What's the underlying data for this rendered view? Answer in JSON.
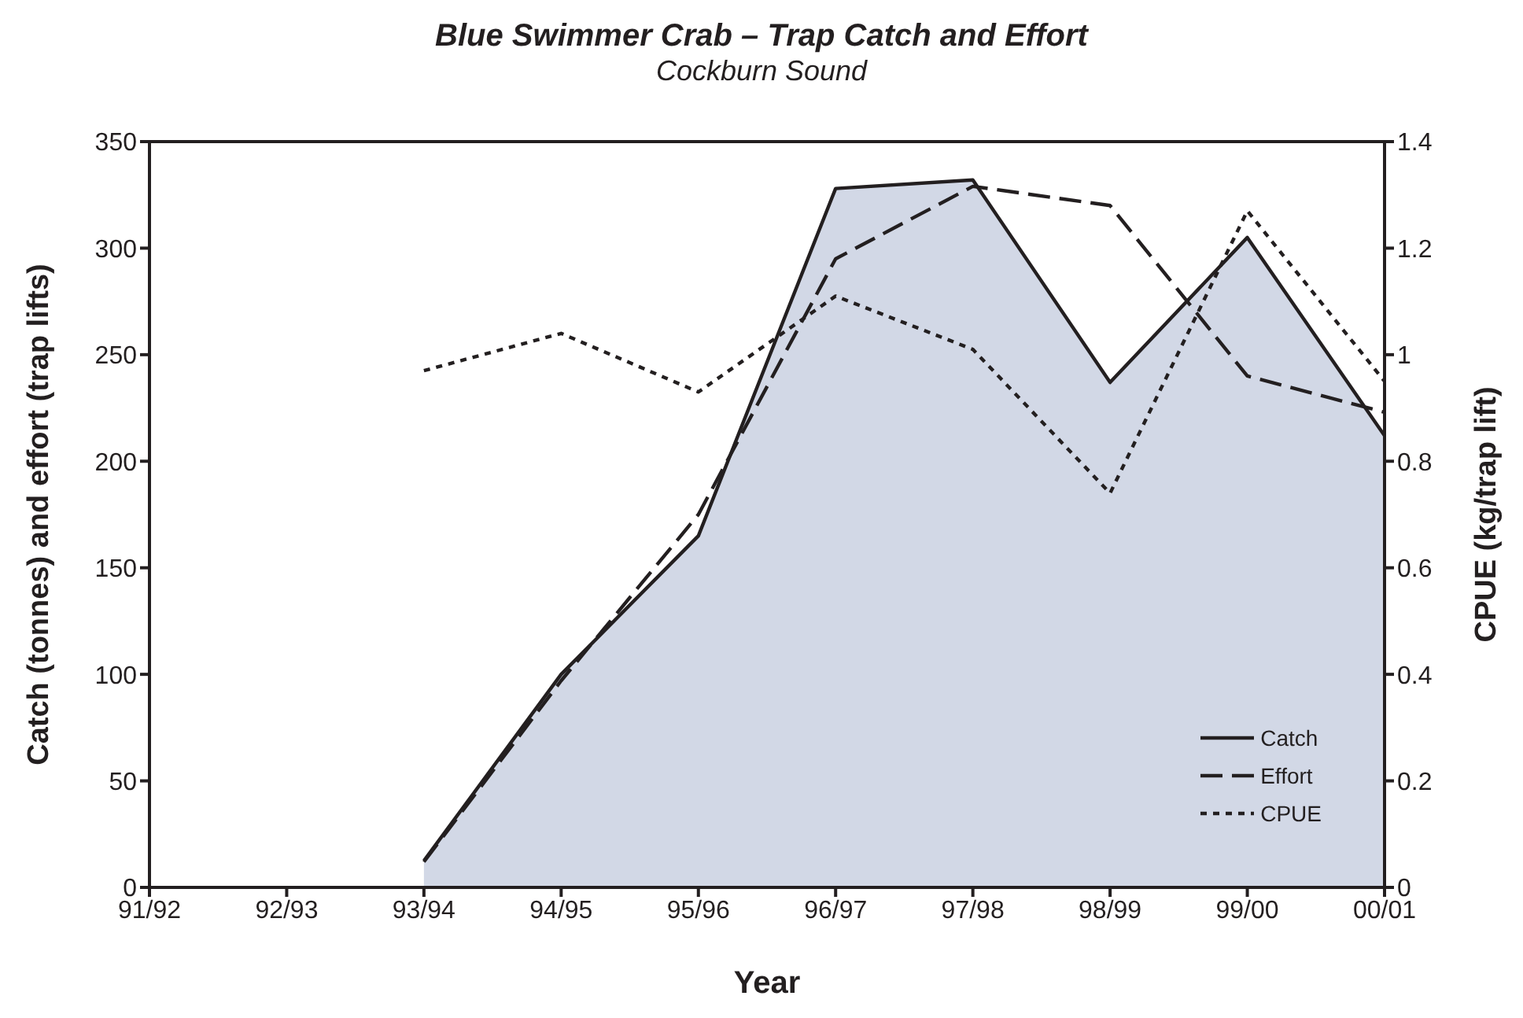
{
  "chart_data": {
    "type": "line",
    "title": "Blue Swimmer Crab – Trap Catch and Effort",
    "subtitle": "Cockburn Sound",
    "xlabel": "Year",
    "ylabel": "Catch (tonnes) and effort (trap lifts)",
    "y2label": "CPUE (kg/trap lift)",
    "categories": [
      "91/92",
      "92/93",
      "93/94",
      "94/95",
      "95/96",
      "96/97",
      "97/98",
      "98/99",
      "99/00",
      "00/01"
    ],
    "series": [
      {
        "name": "Catch",
        "type": "area",
        "color": "#d2d8e6",
        "line_style": "solid",
        "values": [
          null,
          null,
          12.5,
          100,
          165,
          328,
          332,
          237,
          305,
          212
        ]
      },
      {
        "name": "Effort",
        "color": "#231f20",
        "line_style": "dashed",
        "values": [
          null,
          null,
          12,
          97,
          175,
          295,
          329,
          320,
          240,
          223
        ]
      },
      {
        "name": "CPUE",
        "color": "#231f20",
        "line_style": "dotted",
        "axis": "y2",
        "values": [
          null,
          null,
          0.97,
          1.04,
          0.93,
          1.11,
          1.01,
          0.74,
          1.27,
          0.95
        ]
      }
    ],
    "ylim": [
      0,
      350
    ],
    "yticks": [
      0,
      50,
      100,
      150,
      200,
      250,
      300,
      350
    ],
    "y2lim": [
      0,
      1.4
    ],
    "y2ticks": [
      0,
      0.2,
      0.4,
      0.6,
      0.8,
      1,
      1.2,
      1.4
    ],
    "legend": "bottom right",
    "marker": "none"
  }
}
